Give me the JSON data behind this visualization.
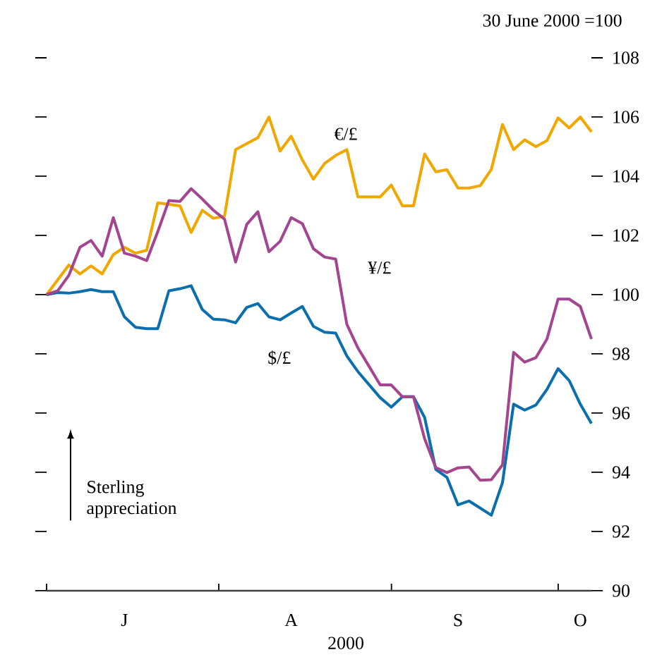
{
  "chart_data": {
    "type": "line",
    "ylabel": "30 June 2000 =100",
    "xlabel": "2000",
    "annotations": [
      "Sterling appreciation"
    ],
    "ylim": [
      90,
      108
    ],
    "yticks": [
      90,
      92,
      94,
      96,
      98,
      100,
      102,
      104,
      106,
      108
    ],
    "categories": [
      null,
      null,
      null,
      null,
      null,
      null,
      null,
      "J",
      null,
      null,
      null,
      null,
      null,
      null,
      null,
      null,
      null,
      null,
      null,
      null,
      null,
      null,
      "A",
      null,
      null,
      null,
      null,
      null,
      null,
      null,
      null,
      null,
      null,
      null,
      null,
      null,
      null,
      "S",
      null,
      null,
      null,
      null,
      null,
      null,
      null,
      null,
      null,
      null,
      "O",
      null
    ],
    "series": [
      {
        "name": "$/£",
        "color": "#0b6fae",
        "values": [
          100,
          100.07,
          100.05,
          100.1,
          100.17,
          100.1,
          100.1,
          99.25,
          98.9,
          98.85,
          98.85,
          100.13,
          100.2,
          100.3,
          99.5,
          99.17,
          99.15,
          99.05,
          99.57,
          99.7,
          99.25,
          99.15,
          99.38,
          99.6,
          98.93,
          98.73,
          98.7,
          97.93,
          97.4,
          96.96,
          96.52,
          96.2,
          96.55,
          96.55,
          95.85,
          94.1,
          93.83,
          92.9,
          93.03,
          92.79,
          92.55,
          93.65,
          96.3,
          96.1,
          96.27,
          96.8,
          97.5,
          97.1,
          96.3,
          95.65
        ]
      },
      {
        "name": "€/£",
        "color": "#f0a800",
        "values": [
          100,
          100.5,
          101.0,
          100.7,
          100.97,
          100.7,
          101.35,
          101.6,
          101.4,
          101.5,
          103.1,
          103.05,
          103.0,
          102.1,
          102.85,
          102.58,
          102.65,
          104.9,
          105.1,
          105.3,
          106.0,
          104.85,
          105.35,
          104.55,
          103.9,
          104.43,
          104.7,
          104.9,
          103.3,
          103.3,
          103.3,
          103.7,
          103.0,
          103.0,
          104.75,
          104.15,
          104.22,
          103.6,
          103.6,
          103.68,
          104.23,
          105.75,
          104.9,
          105.23,
          105.0,
          105.2,
          105.97,
          105.63,
          106.0,
          105.5
        ]
      },
      {
        "name": "¥/£",
        "color": "#a3458f",
        "values": [
          100,
          100.13,
          100.65,
          101.6,
          101.83,
          101.3,
          102.6,
          101.4,
          101.3,
          101.15,
          102.13,
          103.18,
          103.15,
          103.58,
          103.23,
          102.85,
          102.55,
          101.1,
          102.37,
          102.8,
          101.45,
          101.8,
          102.6,
          102.4,
          101.55,
          101.27,
          101.2,
          99.0,
          98.2,
          97.58,
          96.95,
          96.95,
          96.55,
          96.55,
          95.13,
          94.16,
          93.99,
          94.15,
          94.18,
          93.73,
          93.75,
          94.25,
          98.05,
          97.72,
          97.87,
          98.5,
          99.85,
          99.85,
          99.6,
          98.5
        ]
      }
    ]
  }
}
